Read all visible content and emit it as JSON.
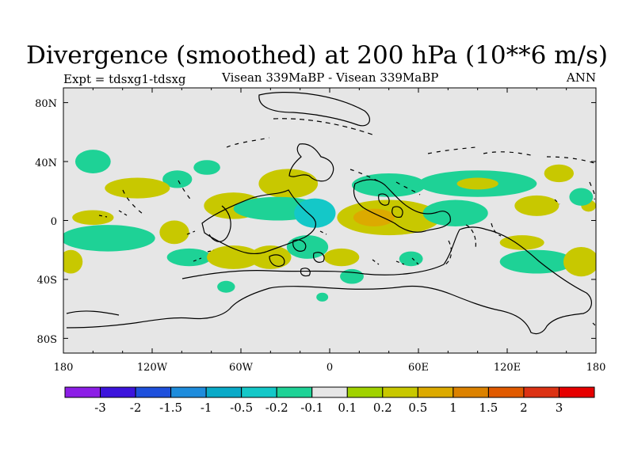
{
  "title": "Divergence (smoothed) at 200 hPa (10**6 m/s)",
  "subtitle_left": "Expt = tdsxg1-tdsxg",
  "subtitle_center": "Visean 339MaBP - Visean 339MaBP",
  "subtitle_right": "ANN",
  "lat_ticks": [
    "80N",
    "40N",
    "0",
    "40S",
    "80S"
  ],
  "lon_ticks": [
    "180",
    "120W",
    "60W",
    "0",
    "60E",
    "120E",
    "180"
  ],
  "colorbar": {
    "colors": [
      "#8c1ee6",
      "#3c14dc",
      "#1e50dc",
      "#1e8cdc",
      "#0aaac8",
      "#14c8c8",
      "#1ed296",
      "#e6e6e6",
      "#a0d200",
      "#c8c800",
      "#dcaa00",
      "#dc8200",
      "#e05a00",
      "#dc3214",
      "#e60000"
    ],
    "labels": [
      "-3",
      "-2",
      "-1.5",
      "-1",
      "-0.5",
      "-0.2",
      "-0.1",
      "0.1",
      "0.2",
      "0.5",
      "1",
      "1.5",
      "2",
      "3"
    ]
  },
  "chart_data": {
    "type": "map",
    "variable": "Divergence (smoothed) at 200 hPa",
    "units": "10**6 m/s",
    "contour_levels": [
      -3,
      -2,
      -1.5,
      -1,
      -0.5,
      -0.2,
      -0.1,
      0.1,
      0.2,
      0.5,
      1,
      1.5,
      2,
      3
    ],
    "lat_range": [
      -90,
      90
    ],
    "lon_range": [
      -180,
      180
    ],
    "blobs": [
      {
        "lon": -160,
        "lat": 40,
        "rx": 12,
        "ry": 8,
        "value": -0.15
      },
      {
        "lon": -103,
        "lat": 28,
        "rx": 10,
        "ry": 6,
        "value": -0.15
      },
      {
        "lon": -83,
        "lat": 36,
        "rx": 9,
        "ry": 5,
        "value": -0.15
      },
      {
        "lon": -130,
        "lat": 22,
        "rx": 22,
        "ry": 7,
        "value": 0.25
      },
      {
        "lon": -28,
        "lat": 25,
        "rx": 20,
        "ry": 10,
        "value": 0.3
      },
      {
        "lon": -65,
        "lat": 10,
        "rx": 20,
        "ry": 9,
        "value": 0.3
      },
      {
        "lon": -160,
        "lat": 2,
        "rx": 14,
        "ry": 5,
        "value": 0.25
      },
      {
        "lon": -35,
        "lat": 8,
        "rx": 30,
        "ry": 8,
        "value": -0.15
      },
      {
        "lon": -10,
        "lat": 5,
        "rx": 14,
        "ry": 10,
        "value": -0.3
      },
      {
        "lon": 40,
        "lat": 24,
        "rx": 25,
        "ry": 8,
        "value": -0.15
      },
      {
        "lon": 40,
        "lat": 2,
        "rx": 35,
        "ry": 12,
        "value": 0.4
      },
      {
        "lon": 30,
        "lat": 2,
        "rx": 14,
        "ry": 6,
        "value": 0.7
      },
      {
        "lon": 85,
        "lat": 5,
        "rx": 22,
        "ry": 9,
        "value": -0.15
      },
      {
        "lon": 100,
        "lat": 25,
        "rx": 40,
        "ry": 9,
        "value": -0.15
      },
      {
        "lon": 100,
        "lat": 25,
        "rx": 14,
        "ry": 4,
        "value": 0.3
      },
      {
        "lon": 155,
        "lat": 32,
        "rx": 10,
        "ry": 6,
        "value": 0.25
      },
      {
        "lon": 140,
        "lat": 10,
        "rx": 15,
        "ry": 7,
        "value": 0.25
      },
      {
        "lon": 175,
        "lat": 10,
        "rx": 5,
        "ry": 4,
        "value": 0.25
      },
      {
        "lon": 130,
        "lat": -15,
        "rx": 15,
        "ry": 5,
        "value": 0.25
      },
      {
        "lon": -150,
        "lat": -12,
        "rx": 32,
        "ry": 9,
        "value": -0.15
      },
      {
        "lon": -95,
        "lat": -25,
        "rx": 15,
        "ry": 6,
        "value": -0.15
      },
      {
        "lon": -175,
        "lat": -28,
        "rx": 8,
        "ry": 8,
        "value": 0.3
      },
      {
        "lon": -105,
        "lat": -8,
        "rx": 10,
        "ry": 8,
        "value": 0.25
      },
      {
        "lon": -65,
        "lat": -25,
        "rx": 18,
        "ry": 8,
        "value": 0.3
      },
      {
        "lon": -40,
        "lat": -25,
        "rx": 14,
        "ry": 8,
        "value": 0.3
      },
      {
        "lon": -15,
        "lat": -18,
        "rx": 14,
        "ry": 8,
        "value": -0.15
      },
      {
        "lon": 8,
        "lat": -25,
        "rx": 12,
        "ry": 6,
        "value": 0.25
      },
      {
        "lon": 15,
        "lat": -38,
        "rx": 8,
        "ry": 5,
        "value": -0.15
      },
      {
        "lon": -5,
        "lat": -52,
        "rx": 4,
        "ry": 3,
        "value": -0.15
      },
      {
        "lon": 55,
        "lat": -26,
        "rx": 8,
        "ry": 5,
        "value": -0.15
      },
      {
        "lon": 140,
        "lat": -28,
        "rx": 25,
        "ry": 8,
        "value": -0.15
      },
      {
        "lon": 170,
        "lat": -28,
        "rx": 12,
        "ry": 10,
        "value": 0.3
      },
      {
        "lon": -70,
        "lat": -45,
        "rx": 6,
        "ry": 4,
        "value": -0.15
      },
      {
        "lon": 170,
        "lat": 16,
        "rx": 8,
        "ry": 6,
        "value": -0.15
      }
    ]
  }
}
